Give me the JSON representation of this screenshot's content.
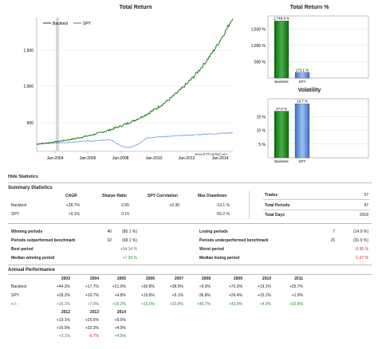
{
  "total_return": {
    "title": "Total Return",
    "legend": [
      "Backtest",
      "SPY"
    ],
    "y_ticks": [
      "500",
      "1,000",
      "1,500"
    ],
    "x_ticks": [
      "Jan-2004",
      "Jan-2006",
      "Jan-2008",
      "Jan-2010",
      "Jan-2012",
      "Jan-2014"
    ],
    "watermark": "www.ETFreplay.com",
    "colors": {
      "backtest": "#1a7a1a",
      "spy": "#5b8fd6"
    }
  },
  "total_return_pct": {
    "title": "Total Return %",
    "y_ticks": [
      "500 %",
      "1,000 %",
      "1,500 %"
    ],
    "bars": [
      {
        "label": "Backtest",
        "value_label": "1,748.9 %",
        "value": 1748.9
      },
      {
        "label": "SPY",
        "value_label": "173.1 %",
        "value": 173.1
      }
    ]
  },
  "volatility": {
    "title": "Volatility",
    "y_ticks": [
      "5 %",
      "10 %",
      "15 %"
    ],
    "bars": [
      {
        "label": "Backtest",
        "value_label": "17.0 %",
        "value": 17.0
      },
      {
        "label": "SPY",
        "value_label": "19.7 %",
        "value": 19.7
      }
    ]
  },
  "hide_statistics": "Hide Statistics",
  "summary": {
    "title": "Summary Statistics",
    "headers": [
      "CAGR",
      "Sharpe Ratio",
      "SPY Correlation",
      "Max Drawdown"
    ],
    "rows": [
      {
        "name": "Backtest",
        "cagr": "+28.7%",
        "sharpe": "0.95",
        "corr": "+0.36",
        "dd": "-19.1 %"
      },
      {
        "name": "SPY",
        "cagr": "+9.1%",
        "sharpe": "0.15",
        "corr": "",
        "dd": "-55.2 %"
      }
    ],
    "side": [
      {
        "label": "Trades",
        "value": "57"
      },
      {
        "label": "Total Periods",
        "value": "47"
      },
      {
        "label": "Total Days",
        "value": "2918"
      }
    ]
  },
  "periods": {
    "left": [
      {
        "label": "Winning periods",
        "count": "40",
        "pct": "(85.1 %)"
      },
      {
        "label": "Periods outperformed benchmark",
        "count": "32",
        "pct": "(68.1 %)"
      },
      {
        "label": "Best period",
        "count": "",
        "pct": "+34.14 %"
      },
      {
        "label": "Median winning period",
        "count": "",
        "pct": "+7.29 %"
      }
    ],
    "right": [
      {
        "label": "Losing periods",
        "count": "7",
        "pct": "(14.9 %)"
      },
      {
        "label": "Periods underperformed benchmark",
        "count": "15",
        "pct": "(31.9 %)"
      },
      {
        "label": "Worst period",
        "count": "",
        "pct": "-5.95 %"
      },
      {
        "label": "Median losing period",
        "count": "",
        "pct": "-1.37 %"
      }
    ]
  },
  "annual": {
    "title": "Annual Performance",
    "years1": [
      "2003",
      "2004",
      "2005",
      "2006",
      "2007",
      "2008",
      "2009",
      "2010",
      "2011"
    ],
    "rows1": [
      {
        "name": "Backtest",
        "vals": [
          "+44.3%",
          "+17.7%",
          "+21.0%",
          "+30.8%",
          "+38.9%",
          "+9.9%",
          "+70.3%",
          "+19.1%",
          "+35.7%"
        ]
      },
      {
        "name": "SPY",
        "vals": [
          "+28.2%",
          "+10.7%",
          "+4.8%",
          "+15.8%",
          "+5.1%",
          "-36.8%",
          "+26.4%",
          "+15.1%",
          "+1.9%"
        ]
      },
      {
        "name": "+ / -",
        "vals": [
          "+16.1%",
          "+7.0%",
          "+16.2%",
          "+15.0%",
          "+33.8%",
          "+46.7%",
          "+43.9%",
          "+4.0%",
          "+33.8%"
        ]
      }
    ],
    "years2": [
      "2012",
      "2013",
      "2014"
    ],
    "rows2": [
      {
        "vals": [
          "+19.1%",
          "+25.6%",
          "+9.5%"
        ]
      },
      {
        "vals": [
          "+16.0%",
          "+32.3%",
          "+4.9%"
        ]
      },
      {
        "vals": [
          "+3.1%",
          "-6.7%",
          "+4.5%"
        ]
      }
    ]
  }
}
